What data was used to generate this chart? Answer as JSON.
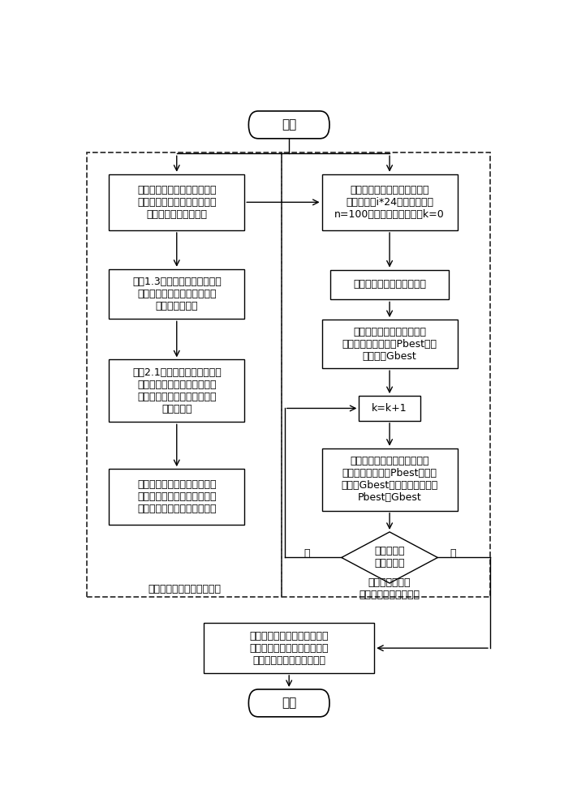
{
  "bg_color": "#ffffff",
  "fig_width": 6.95,
  "fig_height": 10.0,
  "start_text": "开始",
  "end_text": "结束",
  "left_box1_text": "输入电网系统数据、用户历史\n用电数据、电动汽车用户出行\n统计数据、电池参数等",
  "right_box1_text": "初始化各节点发电机和电动汽\n车接入节点i*24维粒子，规模\nn=100，迭代次数初始化，k=0",
  "left_box2_text": "应用1.3节模拟抽样方法抽样各\n节点时间序列的电动汽车时空\n充放电功率需求",
  "right_box2_text": "根据约束条件修改粒子位置",
  "left_box3_text": "应用2.1节计及充电迫切度和放\n电充裕度排序方法对电动汽车\n排序，得到时空序列功率可调\n控域上下限",
  "right_box3_text": "最优潮流计算各粒子适应度\n值，存储局部最优解Pbest和全\n局最优解Gbest",
  "right_box4_text": "k=k+1",
  "left_box4_text": "各节点时间序列的负荷聚合商\n功率需求历史数据读取，产生\n典型负荷聚合商负荷功率曲线",
  "right_box5_text": "更新粒子种群，计算并比较优\n化后的局部最优解Pbest和全局\n最优解Gbest，并更新存储新的\nPbest和Gbest",
  "diamond_text": "是否满足迭\n代终止条件",
  "bottom_box_text": "输出各节点电价并执行用户电\n动汽车充放电计划、负荷聚合\n商响应情况和系统调度计划",
  "left_label": "节点负荷初始数据抽样模型",
  "right_label1": "计及空间特性的",
  "right_label2": "节点电价最优潮流模型",
  "no_text": "否",
  "yes_text": "是"
}
